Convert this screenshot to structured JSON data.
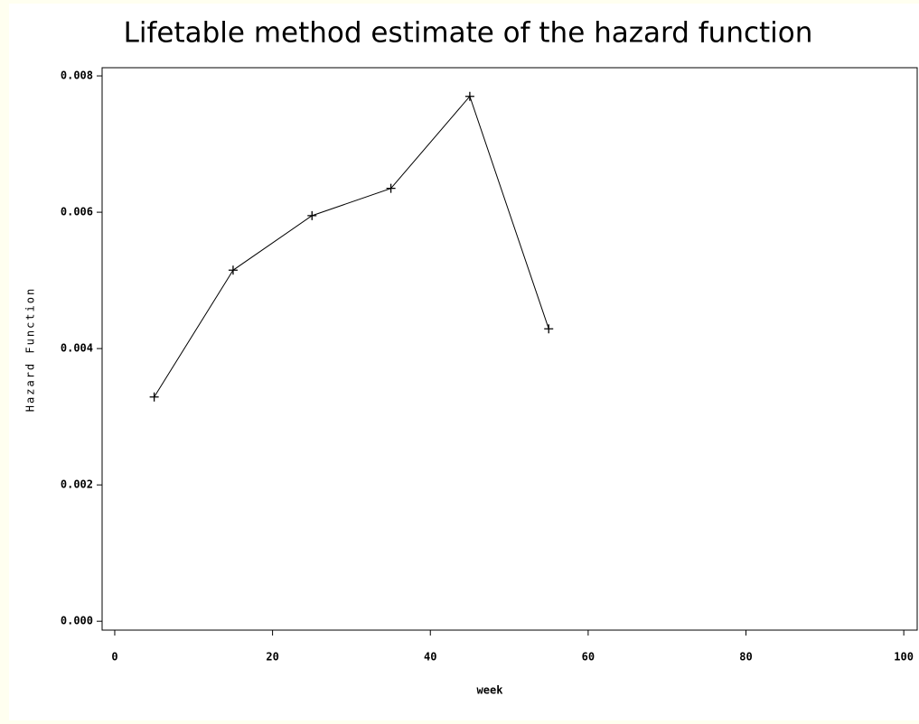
{
  "chart_data": {
    "type": "line",
    "title": "Lifetable method estimate of the hazard function",
    "x_label": "week",
    "y_label": "Hazard Function",
    "x": [
      5,
      15,
      25,
      35,
      45,
      55
    ],
    "series": [
      {
        "name": "Hazard Function",
        "color": "#000000",
        "values": [
          0.00329,
          0.00515,
          0.00595,
          0.00635,
          0.0077,
          0.00429
        ]
      }
    ],
    "marker": "+",
    "xlim": [
      -1.6,
      101.7
    ],
    "xticks": [
      0,
      20,
      40,
      60,
      80,
      100
    ],
    "ylim": [
      -0.00013,
      0.00812
    ],
    "yticks": [
      {
        "value": 0,
        "label": "0.000"
      },
      {
        "value": 0.002,
        "label": "0.002"
      },
      {
        "value": 0.004,
        "label": "0.004"
      },
      {
        "value": 0.006,
        "label": "0.006"
      },
      {
        "value": 0.008,
        "label": "0.008"
      }
    ],
    "grid": false
  }
}
